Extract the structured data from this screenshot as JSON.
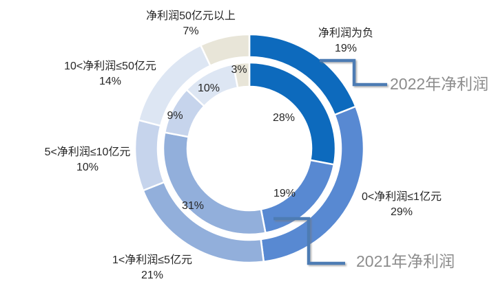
{
  "chart_data": {
    "type": "pie",
    "subtype": "double-ring-donut",
    "title": "",
    "categories": [
      "净利润为负",
      "0<净利润≤1亿元",
      "1<净利润≤5亿元",
      "5<净利润≤10亿元",
      "10<净利润≤50亿元",
      "净利润50亿元以上"
    ],
    "series": [
      {
        "name": "2021年净利润",
        "ring": "inner",
        "values": [
          28,
          19,
          31,
          9,
          10,
          3
        ]
      },
      {
        "name": "2022年净利润",
        "ring": "outer",
        "values": [
          19,
          29,
          21,
          10,
          14,
          7
        ]
      }
    ],
    "value_suffix": "%",
    "start_angle_deg": 0,
    "direction": "clockwise",
    "legend_position": "callouts",
    "grid": false,
    "colors": [
      "#0d6abd",
      "#5889d2",
      "#92afdb",
      "#c6d4ec",
      "#dde6f3",
      "#e8e5d8"
    ],
    "label_color": "#262626",
    "callout_text_color": "#8c8c8c",
    "connector_color": "#4d7cb4",
    "background_color": "#ffffff"
  }
}
